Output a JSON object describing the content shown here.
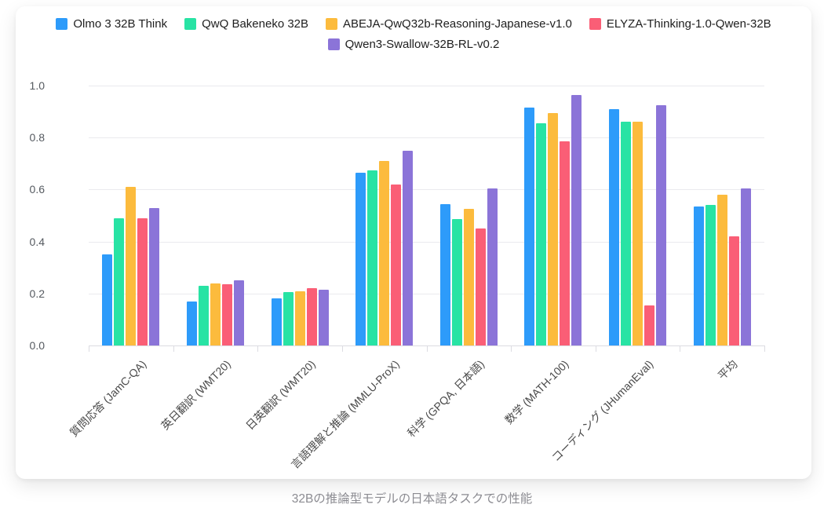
{
  "page": {
    "caption": "32Bの推論型モデルの日本語タスクでの性能"
  },
  "chart_data": {
    "type": "bar",
    "title": "32Bの推論型モデルの日本語タスクでの性能",
    "categories": [
      "質問応答 (JamC-QA)",
      "英日翻訳 (WMT20)",
      "日英翻訳 (WMT20)",
      "言語理解と推論 (MMLU-ProX)",
      "科学 (GPQA, 日本語)",
      "数学 (MATH-100)",
      "コーディング (JHumanEval)",
      "平均"
    ],
    "series": [
      {
        "name": "Olmo 3 32B Think",
        "color": "#2d9bfa",
        "values": [
          0.35,
          0.17,
          0.18,
          0.665,
          0.545,
          0.915,
          0.91,
          0.535
        ]
      },
      {
        "name": "QwQ Bakeneko 32B",
        "color": "#28e3a4",
        "values": [
          0.49,
          0.23,
          0.205,
          0.675,
          0.485,
          0.855,
          0.86,
          0.54
        ]
      },
      {
        "name": "ABEJA-QwQ32b-Reasoning-Japanese-v1.0",
        "color": "#fcbb3d",
        "values": [
          0.61,
          0.24,
          0.21,
          0.71,
          0.525,
          0.895,
          0.86,
          0.58
        ]
      },
      {
        "name": "ELYZA-Thinking-1.0-Qwen-32B",
        "color": "#fa5e76",
        "values": [
          0.49,
          0.235,
          0.22,
          0.62,
          0.45,
          0.785,
          0.155,
          0.42
        ]
      },
      {
        "name": "Qwen3-Swallow-32B-RL-v0.2",
        "color": "#8b74d8",
        "values": [
          0.53,
          0.25,
          0.215,
          0.75,
          0.605,
          0.965,
          0.925,
          0.605
        ]
      }
    ],
    "legend_rows": [
      [
        0,
        1,
        2,
        3
      ],
      [
        4
      ]
    ],
    "legend_position": "top",
    "y_ticks": [
      "0.0",
      "0.2",
      "0.4",
      "0.6",
      "0.8",
      "1.0"
    ],
    "ylim": [
      0,
      1.0
    ],
    "grid": true,
    "colors": {
      "grid": "#eaeaee",
      "axis": "#dcdce2",
      "legend_text": "#1e1e1e",
      "x_label_text": "#4a4a4a",
      "y_label_text": "#555a60",
      "caption_text": "#8c8c92"
    }
  }
}
